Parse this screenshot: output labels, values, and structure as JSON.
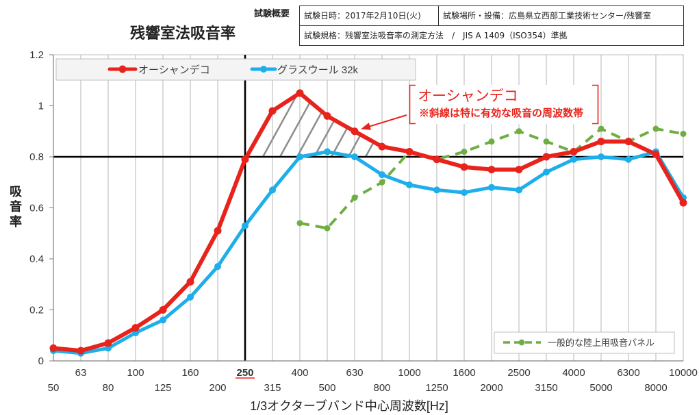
{
  "test_info": {
    "label": "試験概要",
    "date": "試験日時：2017年2月10日(火)",
    "location": "試験場所・設備：広島県立西部工業技術センター/残響室",
    "standard": "試験規格：残響室法吸音率の測定方法　/　JIS A 1409（ISO354）準拠"
  },
  "annotation": {
    "title": "オーシャンデコ",
    "note": "※斜線は特に有効な吸音の周波数帯"
  },
  "chart_data": {
    "type": "line",
    "title": "残響室法吸音率",
    "xlabel": "1/3オクターブバンド中心周波数[Hz]",
    "ylabel": "吸音率",
    "categories": [
      "50",
      "63",
      "80",
      "100",
      "125",
      "160",
      "200",
      "250",
      "315",
      "400",
      "500",
      "630",
      "800",
      "1000",
      "1250",
      "1600",
      "2000",
      "2500",
      "3150",
      "4000",
      "5000",
      "6300",
      "8000",
      "10000"
    ],
    "y_ticks": [
      0,
      0.2,
      0.4,
      0.6,
      0.8,
      1,
      1.2
    ],
    "y_tick_labels": [
      "0",
      "0.2",
      "0.4",
      "0.6",
      "0.8",
      "1",
      "1.2"
    ],
    "ylim": [
      0,
      1.2
    ],
    "grid": {
      "vertical": true,
      "horizontal": false
    },
    "highlighted_x": 250,
    "highlight_color": "#e8231b",
    "reference_lines": {
      "y": 0.8,
      "x": 250,
      "color": "#000000"
    },
    "hatched_band": {
      "x_from": 250,
      "x_to": 800,
      "y_floor": 0.8,
      "color": "#8c8c8c"
    },
    "series": [
      {
        "name": "オーシャンデコ",
        "color": "#e8231b",
        "dashed": false,
        "legend": "top-left",
        "values": [
          0.05,
          0.04,
          0.07,
          0.13,
          0.2,
          0.31,
          0.51,
          0.79,
          0.98,
          1.05,
          0.96,
          0.9,
          0.84,
          0.82,
          0.79,
          0.76,
          0.75,
          0.75,
          0.8,
          0.82,
          0.86,
          0.86,
          0.81,
          0.62
        ]
      },
      {
        "name": "グラスウール 32k",
        "color": "#1eaeea",
        "dashed": false,
        "legend": "top-left",
        "values": [
          0.04,
          0.03,
          0.05,
          0.11,
          0.16,
          0.25,
          0.37,
          0.53,
          0.67,
          0.8,
          0.82,
          0.8,
          0.73,
          0.69,
          0.67,
          0.66,
          0.68,
          0.67,
          0.74,
          0.79,
          0.8,
          0.79,
          0.82,
          0.64
        ]
      },
      {
        "name": "一般的な陸上用吸音パネル",
        "color": "#6fae43",
        "dashed": true,
        "legend": "bottom-right",
        "values": [
          null,
          null,
          null,
          null,
          null,
          null,
          null,
          null,
          null,
          0.54,
          0.52,
          0.64,
          0.7,
          0.82,
          0.79,
          0.82,
          0.86,
          0.9,
          0.86,
          0.82,
          0.91,
          0.86,
          0.91,
          0.89
        ]
      }
    ]
  }
}
